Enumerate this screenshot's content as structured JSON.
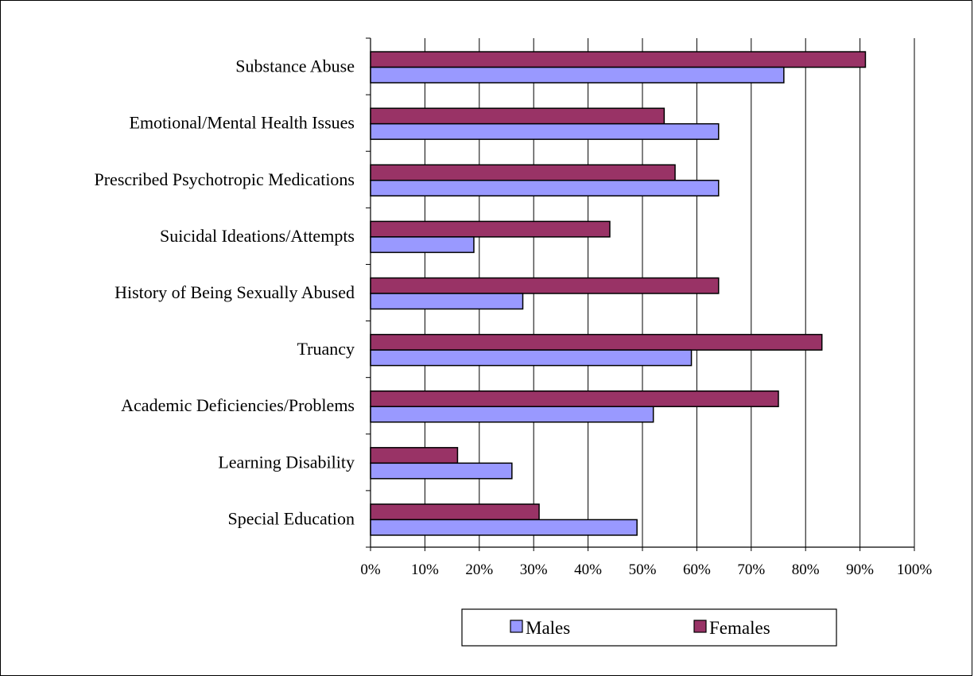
{
  "chart_data": {
    "type": "bar",
    "orientation": "horizontal",
    "categories": [
      "Substance Abuse",
      "Emotional/Mental Health Issues",
      "Prescribed Psychotropic Medications",
      "Suicidal Ideations/Attempts",
      "History of Being Sexually Abused",
      "Truancy",
      "Academic Deficiencies/Problems",
      "Learning Disability",
      "Special Education"
    ],
    "series": [
      {
        "name": "Males",
        "color": "#9999ff",
        "values": [
          76,
          64,
          64,
          19,
          28,
          59,
          52,
          26,
          49
        ]
      },
      {
        "name": "Females",
        "color": "#993366",
        "values": [
          91,
          54,
          56,
          44,
          64,
          83,
          75,
          16,
          31
        ]
      }
    ],
    "xticks": [
      "0%",
      "10%",
      "20%",
      "30%",
      "40%",
      "50%",
      "60%",
      "70%",
      "80%",
      "90%",
      "100%"
    ],
    "xlim": [
      0,
      100
    ],
    "grid": true,
    "legend_position": "bottom"
  }
}
